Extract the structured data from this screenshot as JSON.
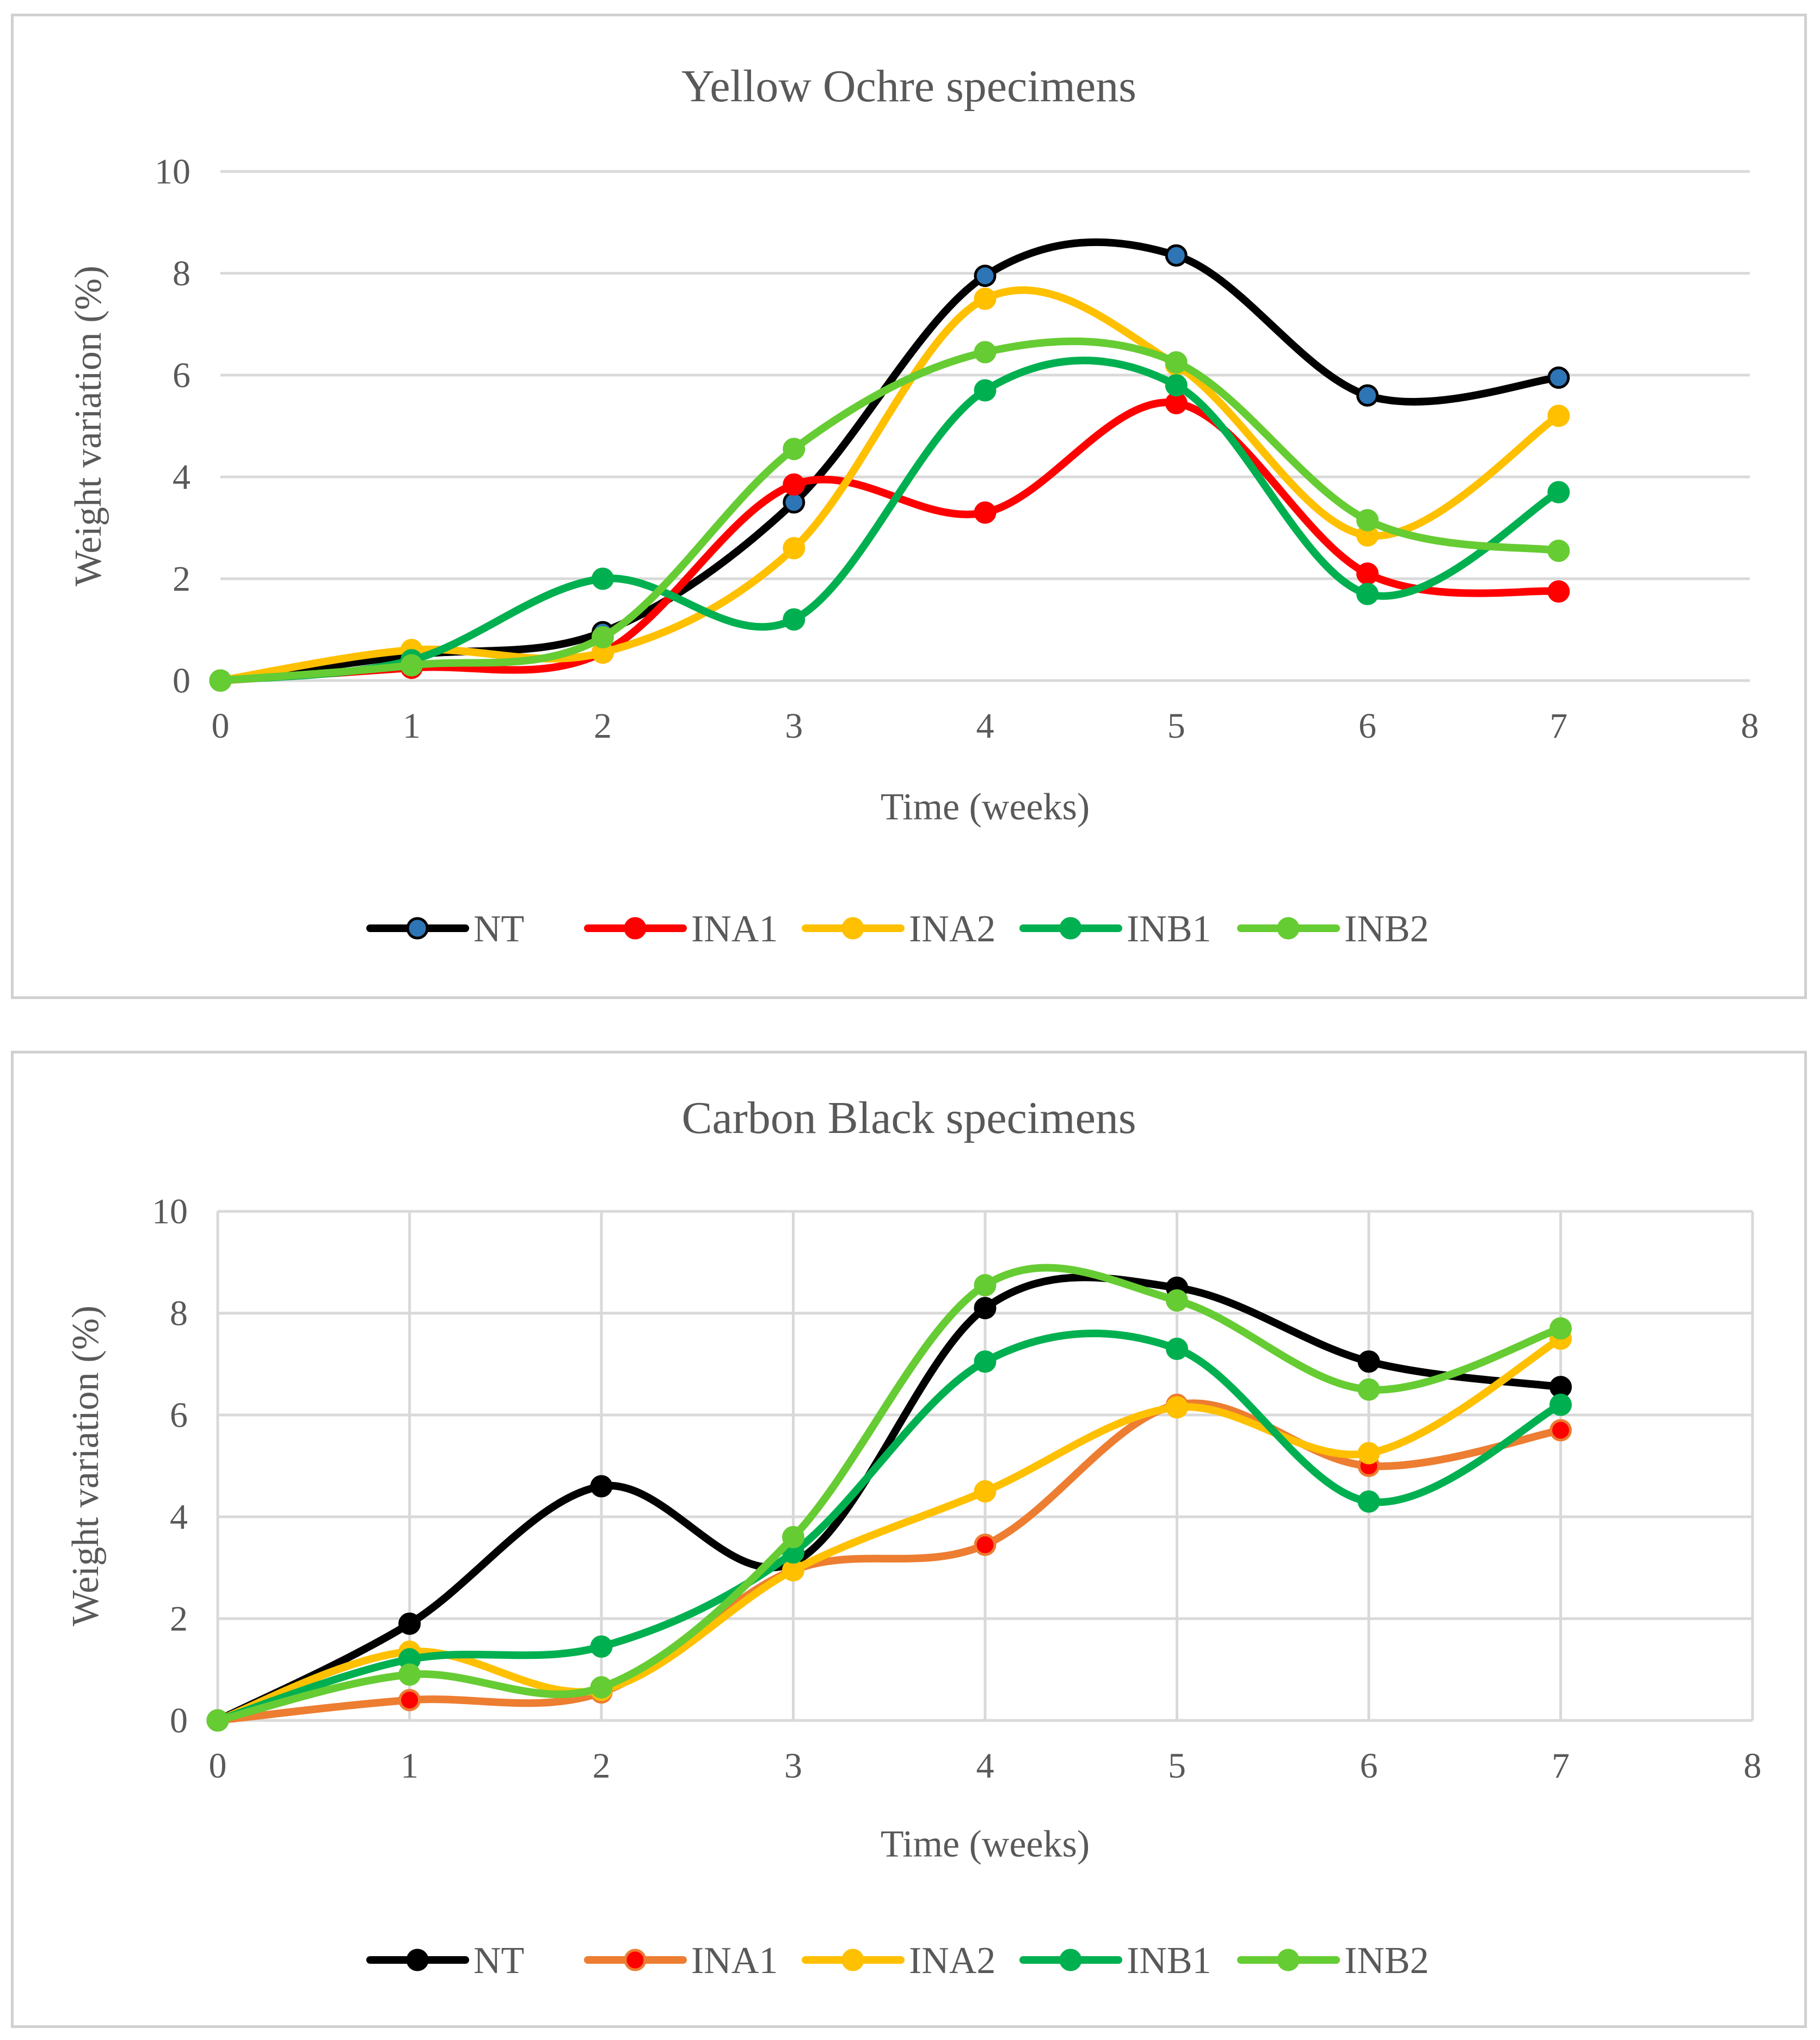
{
  "chart_data": [
    {
      "type": "line",
      "title": "Yellow Ochre specimens",
      "xlabel": "Time (weeks)",
      "ylabel": "Weight variation (%)",
      "xlim": [
        0,
        8
      ],
      "ylim": [
        0,
        10
      ],
      "x_ticks": [
        0,
        1,
        2,
        3,
        4,
        5,
        6,
        7,
        8
      ],
      "y_ticks": [
        0,
        2,
        4,
        6,
        8,
        10
      ],
      "vertical_grid": false,
      "legend_position": "bottom",
      "x": [
        0,
        1,
        2,
        3,
        4,
        5,
        6,
        7
      ],
      "series": [
        {
          "name": "NT",
          "color": "#000000",
          "marker_fill": "#2e75b6",
          "values": [
            0,
            0.5,
            0.95,
            3.5,
            7.95,
            8.35,
            5.6,
            5.95
          ]
        },
        {
          "name": "INA1",
          "color": "#ff0000",
          "marker_fill": "#ff0000",
          "values": [
            0,
            0.25,
            0.55,
            3.85,
            3.3,
            5.45,
            2.1,
            1.75
          ]
        },
        {
          "name": "INA2",
          "color": "#ffc000",
          "marker_fill": "#ffc000",
          "values": [
            0,
            0.6,
            0.55,
            2.6,
            7.5,
            6.2,
            2.85,
            5.2
          ]
        },
        {
          "name": "INB1",
          "color": "#00b050",
          "marker_fill": "#00b050",
          "values": [
            0,
            0.4,
            2.0,
            1.2,
            5.7,
            5.8,
            1.7,
            3.7
          ]
        },
        {
          "name": "INB2",
          "color": "#66cc33",
          "marker_fill": "#66cc33",
          "values": [
            0,
            0.3,
            0.85,
            4.55,
            6.45,
            6.25,
            3.15,
            2.55
          ]
        }
      ]
    },
    {
      "type": "line",
      "title": "Carbon Black specimens",
      "xlabel": "Time (weeks)",
      "ylabel": "Weight variation (%)",
      "xlim": [
        0,
        8
      ],
      "ylim": [
        0,
        10
      ],
      "x_ticks": [
        0,
        1,
        2,
        3,
        4,
        5,
        6,
        7,
        8
      ],
      "y_ticks": [
        0,
        2,
        4,
        6,
        8,
        10
      ],
      "vertical_grid": true,
      "legend_position": "bottom",
      "x": [
        0,
        1,
        2,
        3,
        4,
        5,
        6,
        7
      ],
      "series": [
        {
          "name": "NT",
          "color": "#000000",
          "marker_fill": "#000000",
          "values": [
            0,
            1.9,
            4.6,
            3.1,
            8.1,
            8.5,
            7.05,
            6.55
          ]
        },
        {
          "name": "INA1",
          "color": "#ed7d31",
          "marker_fill": "#ff0000",
          "values": [
            0,
            0.4,
            0.55,
            2.95,
            3.45,
            6.2,
            5.0,
            5.7
          ]
        },
        {
          "name": "INA2",
          "color": "#ffc000",
          "marker_fill": "#ffc000",
          "values": [
            0,
            1.35,
            0.6,
            2.95,
            4.5,
            6.15,
            5.25,
            7.5
          ]
        },
        {
          "name": "INB1",
          "color": "#00b050",
          "marker_fill": "#00b050",
          "values": [
            0,
            1.2,
            1.45,
            3.3,
            7.05,
            7.3,
            4.3,
            6.2
          ]
        },
        {
          "name": "INB2",
          "color": "#66cc33",
          "marker_fill": "#66cc33",
          "values": [
            0,
            0.9,
            0.65,
            3.6,
            8.55,
            8.25,
            6.5,
            7.7
          ]
        }
      ]
    }
  ]
}
